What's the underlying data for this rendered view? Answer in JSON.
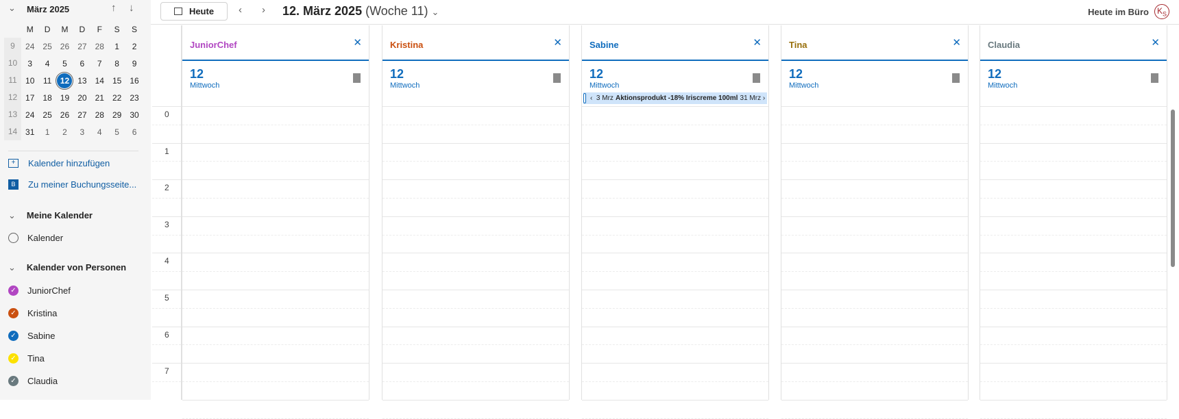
{
  "mini": {
    "month": "März 2025",
    "weekdays": [
      "M",
      "D",
      "M",
      "D",
      "F",
      "S",
      "S"
    ],
    "weeks": [
      {
        "wk": "9",
        "days": [
          "24",
          "25",
          "26",
          "27",
          "28",
          "1",
          "2"
        ],
        "other": [
          0,
          1,
          2,
          3,
          4
        ]
      },
      {
        "wk": "10",
        "days": [
          "3",
          "4",
          "5",
          "6",
          "7",
          "8",
          "9"
        ],
        "other": []
      },
      {
        "wk": "11",
        "days": [
          "10",
          "11",
          "12",
          "13",
          "14",
          "15",
          "16"
        ],
        "other": [],
        "selected": 2
      },
      {
        "wk": "12",
        "days": [
          "17",
          "18",
          "19",
          "20",
          "21",
          "22",
          "23"
        ],
        "other": []
      },
      {
        "wk": "13",
        "days": [
          "24",
          "25",
          "26",
          "27",
          "28",
          "29",
          "30"
        ],
        "other": []
      },
      {
        "wk": "14",
        "days": [
          "31",
          "1",
          "2",
          "3",
          "4",
          "5",
          "6"
        ],
        "other": [
          1,
          2,
          3,
          4,
          5,
          6
        ]
      }
    ]
  },
  "links": {
    "add": "Kalender hinzufügen",
    "booking": "Zu meiner Buchungsseite..."
  },
  "my": {
    "header": "Meine Kalender",
    "items": [
      {
        "label": "Kalender"
      }
    ]
  },
  "people": {
    "header": "Kalender von Personen",
    "items": [
      {
        "label": "JuniorChef",
        "color": "#b146c2"
      },
      {
        "label": "Kristina",
        "color": "#ca5010"
      },
      {
        "label": "Sabine",
        "color": "#0f6cbd"
      },
      {
        "label": "Tina",
        "color": "#fce100"
      },
      {
        "label": "Claudia",
        "color": "#69797e"
      }
    ]
  },
  "toolbar": {
    "today": "Heute",
    "date": "12. März 2025",
    "week": "(Woche 11)",
    "office": "Heute im Büro",
    "avatar": "KS"
  },
  "hours": [
    "0",
    "1",
    "2",
    "3",
    "4",
    "5",
    "6",
    "7"
  ],
  "columns": [
    {
      "name": "JuniorChef",
      "color": "#b146c2",
      "day": "12",
      "weekday": "Mittwoch"
    },
    {
      "name": "Kristina",
      "color": "#ca5010",
      "day": "12",
      "weekday": "Mittwoch"
    },
    {
      "name": "Sabine",
      "color": "#0f6cbd",
      "day": "12",
      "weekday": "Mittwoch",
      "event": {
        "start": "3 Mrz",
        "title": "Aktionsprodukt -18% Iriscreme 100ml",
        "end": "31 Mrz"
      }
    },
    {
      "name": "Tina",
      "color": "#986f0b",
      "day": "12",
      "weekday": "Mittwoch"
    },
    {
      "name": "Claudia",
      "color": "#69797e",
      "day": "12",
      "weekday": "Mittwoch"
    }
  ]
}
